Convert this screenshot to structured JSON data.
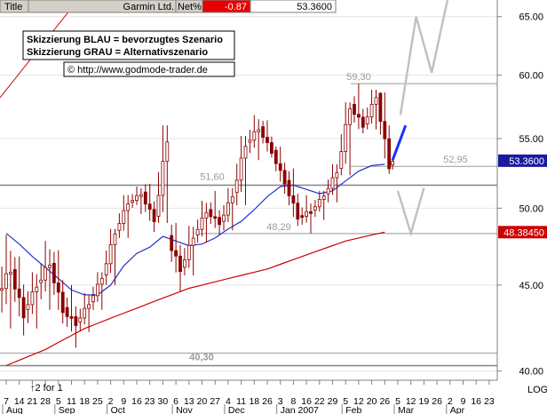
{
  "header": {
    "title_label": "Title",
    "instrument": "Garmin Ltd.",
    "net_label": "Net%",
    "net_value": "-0.87",
    "price": "53.3600"
  },
  "legend": {
    "line1": "Skizzierung BLAU = bevorzugtes Szenario",
    "line2": "Skizzierung GRAU = Alternativszenario",
    "url": "© http://www.godmode-trader.de"
  },
  "footer": {
    "scale_note": "↑2 for 1",
    "log_label": "LOG"
  },
  "colors": {
    "candle": "#8b0000",
    "ma_short": "#2233cc",
    "ma_long": "#cc0000",
    "level_line": "#999999",
    "scenario_blue": "#1a33ff",
    "scenario_grey": "#c0c0c0",
    "price_box": "#1a1aa0",
    "ma_box": "#cc0000",
    "net_box": "#e60000"
  },
  "chart_data": {
    "type": "candlestick",
    "instrument": "Garmin Ltd.",
    "scale": "log",
    "ylim": [
      39.5,
      66.5
    ],
    "y_ticks": [
      {
        "value": 40,
        "label": "40.00"
      },
      {
        "value": 45,
        "label": "45.00"
      },
      {
        "value": 50,
        "label": "50.00"
      },
      {
        "value": 55,
        "label": "55.00"
      },
      {
        "value": 60,
        "label": "60.00"
      },
      {
        "value": 65,
        "label": "65.00"
      }
    ],
    "x_day_labels": [
      "7",
      "14",
      "21",
      "28",
      "5",
      "11",
      "18",
      "25",
      "2",
      "9",
      "16",
      "23",
      "30",
      "6",
      "13",
      "20",
      "27",
      "4",
      "11",
      "18",
      "26",
      "3",
      "8",
      "16",
      "22",
      "29",
      "5",
      "12",
      "20",
      "26",
      "5",
      "12",
      "19",
      "26",
      "2",
      "9",
      "16",
      "23"
    ],
    "x_month_labels": [
      {
        "label": "Aug",
        "index": 0
      },
      {
        "label": "Sep",
        "index": 4
      },
      {
        "label": "Oct",
        "index": 8
      },
      {
        "label": "Nov",
        "index": 13
      },
      {
        "label": "Dec",
        "index": 17
      },
      {
        "label": "Jan 2007",
        "index": 21
      },
      {
        "label": "Feb",
        "index": 26
      },
      {
        "label": "Mar",
        "index": 30
      },
      {
        "label": "Apr",
        "index": 34
      }
    ],
    "last_date_index": 29.8,
    "levels": [
      {
        "value": 59.3,
        "label": "59,30"
      },
      {
        "value": 52.95,
        "label": "52,95"
      },
      {
        "value": 51.6,
        "label": "51,60"
      },
      {
        "value": 48.29,
        "label": "48,29"
      },
      {
        "value": 41.0,
        "label": ""
      },
      {
        "value": 40.3,
        "label": "40,30"
      }
    ],
    "last_price": {
      "value": 53.36,
      "label": "53.3600"
    },
    "ma_last": {
      "value": 48.3845,
      "label": "48.38450"
    },
    "weekly": [
      {
        "i": 0,
        "o": 44.5,
        "h": 48.2,
        "l": 42.4,
        "c": 46.0
      },
      {
        "i": 1,
        "o": 45.8,
        "h": 46.8,
        "l": 42.0,
        "c": 43.2
      },
      {
        "i": 2,
        "o": 43.4,
        "h": 45.8,
        "l": 42.4,
        "c": 45.0
      },
      {
        "i": 3,
        "o": 45.0,
        "h": 47.8,
        "l": 43.5,
        "c": 46.4
      },
      {
        "i": 4,
        "o": 46.2,
        "h": 47.2,
        "l": 42.7,
        "c": 43.5
      },
      {
        "i": 5,
        "o": 43.5,
        "h": 45.0,
        "l": 41.3,
        "c": 42.7
      },
      {
        "i": 6,
        "o": 42.7,
        "h": 44.5,
        "l": 42.2,
        "c": 43.9
      },
      {
        "i": 7,
        "o": 43.9,
        "h": 45.8,
        "l": 43.5,
        "c": 45.5
      },
      {
        "i": 8,
        "o": 45.5,
        "h": 48.6,
        "l": 45.0,
        "c": 48.4
      },
      {
        "i": 9,
        "o": 48.4,
        "h": 50.9,
        "l": 48.0,
        "c": 50.4
      },
      {
        "i": 10,
        "o": 50.4,
        "h": 51.5,
        "l": 49.6,
        "c": 51.0
      },
      {
        "i": 11,
        "o": 51.0,
        "h": 51.7,
        "l": 48.4,
        "c": 49.2
      },
      {
        "i": 12,
        "o": 49.2,
        "h": 56.0,
        "l": 49.0,
        "c": 55.0
      },
      {
        "i": 13,
        "o": 48.0,
        "h": 49.0,
        "l": 44.6,
        "c": 46.0
      },
      {
        "i": 14,
        "o": 46.0,
        "h": 48.8,
        "l": 45.6,
        "c": 48.1
      },
      {
        "i": 15,
        "o": 48.1,
        "h": 50.5,
        "l": 47.7,
        "c": 49.8
      },
      {
        "i": 16,
        "o": 49.8,
        "h": 51.2,
        "l": 48.2,
        "c": 49.0
      },
      {
        "i": 17,
        "o": 49.0,
        "h": 51.4,
        "l": 48.5,
        "c": 50.9
      },
      {
        "i": 18,
        "o": 50.9,
        "h": 55.2,
        "l": 50.2,
        "c": 54.6
      },
      {
        "i": 19,
        "o": 54.6,
        "h": 56.8,
        "l": 53.4,
        "c": 55.8
      },
      {
        "i": 20,
        "o": 55.8,
        "h": 56.4,
        "l": 53.6,
        "c": 54.0
      },
      {
        "i": 21,
        "o": 54.0,
        "h": 54.4,
        "l": 51.0,
        "c": 51.8
      },
      {
        "i": 22,
        "o": 51.8,
        "h": 52.8,
        "l": 48.8,
        "c": 49.4
      },
      {
        "i": 23,
        "o": 49.4,
        "h": 50.9,
        "l": 48.3,
        "c": 49.8
      },
      {
        "i": 24,
        "o": 49.8,
        "h": 51.2,
        "l": 49.2,
        "c": 50.9
      },
      {
        "i": 25,
        "o": 50.9,
        "h": 53.1,
        "l": 50.4,
        "c": 52.6
      },
      {
        "i": 26,
        "o": 52.6,
        "h": 57.8,
        "l": 52.3,
        "c": 57.5
      },
      {
        "i": 27,
        "o": 57.5,
        "h": 59.3,
        "l": 55.4,
        "c": 56.0
      },
      {
        "i": 28,
        "o": 56.0,
        "h": 58.8,
        "l": 55.7,
        "c": 58.3
      },
      {
        "i": 29,
        "o": 58.3,
        "h": 58.6,
        "l": 52.4,
        "c": 53.0
      },
      {
        "i": 29.6,
        "o": 53.0,
        "h": 53.6,
        "l": 52.2,
        "c": 53.36
      }
    ],
    "ma_short": [
      [
        0,
        48.3
      ],
      [
        1,
        47.6
      ],
      [
        2,
        46.8
      ],
      [
        3,
        46.1
      ],
      [
        4,
        45.4
      ],
      [
        5,
        44.7
      ],
      [
        6,
        44.4
      ],
      [
        7,
        44.4
      ],
      [
        8,
        45.0
      ],
      [
        9,
        46.2
      ],
      [
        10,
        47.0
      ],
      [
        11,
        47.4
      ],
      [
        12,
        48.1
      ],
      [
        13,
        47.8
      ],
      [
        14,
        47.5
      ],
      [
        15,
        47.6
      ],
      [
        16,
        48.0
      ],
      [
        17,
        48.6
      ],
      [
        18,
        49.1
      ],
      [
        19,
        49.9
      ],
      [
        20,
        50.8
      ],
      [
        21,
        51.5
      ],
      [
        22,
        51.6
      ],
      [
        23,
        51.3
      ],
      [
        24,
        51.0
      ],
      [
        25,
        51.2
      ],
      [
        26,
        51.9
      ],
      [
        27,
        52.6
      ],
      [
        28,
        53.0
      ],
      [
        29,
        53.1
      ]
    ],
    "ma_long": [
      [
        0,
        40.3
      ],
      [
        1,
        40.6
      ],
      [
        2,
        40.9
      ],
      [
        3,
        41.2
      ],
      [
        4,
        41.6
      ],
      [
        5,
        42.0
      ],
      [
        6,
        42.4
      ],
      [
        7,
        42.7
      ],
      [
        8,
        43.0
      ],
      [
        9,
        43.3
      ],
      [
        10,
        43.6
      ],
      [
        11,
        43.9
      ],
      [
        12,
        44.2
      ],
      [
        13,
        44.5
      ],
      [
        14,
        44.8
      ],
      [
        15,
        45.0
      ],
      [
        16,
        45.2
      ],
      [
        17,
        45.4
      ],
      [
        18,
        45.6
      ],
      [
        19,
        45.8
      ],
      [
        20,
        46.0
      ],
      [
        21,
        46.3
      ],
      [
        22,
        46.6
      ],
      [
        23,
        46.9
      ],
      [
        24,
        47.2
      ],
      [
        25,
        47.5
      ],
      [
        26,
        47.8
      ],
      [
        27,
        48.0
      ],
      [
        28,
        48.2
      ],
      [
        29,
        48.38
      ]
    ],
    "channel_upper": [
      [
        -1,
        57.5
      ],
      [
        5.5,
        66.5
      ]
    ],
    "scenario_blue": [
      [
        29.6,
        53.4
      ],
      [
        30.6,
        56.0
      ]
    ],
    "scenario_grey_up": [
      [
        30.2,
        56.8
      ],
      [
        31.4,
        65.0
      ],
      [
        32.6,
        60.2
      ],
      [
        33.8,
        66.5
      ]
    ],
    "scenario_grey_down": [
      [
        30.0,
        51.2
      ],
      [
        31.0,
        48.3
      ],
      [
        32.0,
        51.4
      ]
    ]
  }
}
